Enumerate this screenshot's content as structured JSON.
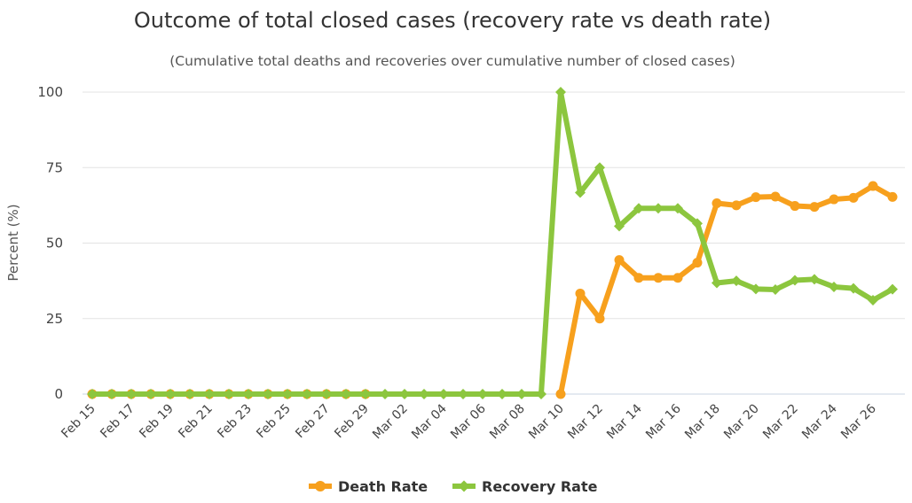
{
  "chart_data": {
    "type": "line",
    "title": "Outcome of total closed cases (recovery rate vs death rate)",
    "subtitle": "(Cumulative total deaths and recoveries over cumulative number of closed cases)",
    "xlabel": "",
    "ylabel": "Percent (%)",
    "ylim": [
      0,
      100
    ],
    "yticks": [
      "0",
      "25",
      "50",
      "75",
      "100"
    ],
    "ytick_values": [
      0,
      25,
      50,
      75,
      100
    ],
    "categories": [
      "Feb 15",
      "Feb 16",
      "Feb 17",
      "Feb 18",
      "Feb 19",
      "Feb 20",
      "Feb 21",
      "Feb 22",
      "Feb 23",
      "Feb 24",
      "Feb 25",
      "Feb 26",
      "Feb 27",
      "Feb 28",
      "Feb 29",
      "Mar 01",
      "Mar 02",
      "Mar 03",
      "Mar 04",
      "Mar 05",
      "Mar 06",
      "Mar 07",
      "Mar 08",
      "Mar 09",
      "Mar 10",
      "Mar 11",
      "Mar 12",
      "Mar 13",
      "Mar 14",
      "Mar 15",
      "Mar 16",
      "Mar 17",
      "Mar 18",
      "Mar 19",
      "Mar 20",
      "Mar 21",
      "Mar 22",
      "Mar 23",
      "Mar 24",
      "Mar 25",
      "Mar 26",
      "Mar 27"
    ],
    "x_tick_labels": [
      "Feb 15",
      "Feb 17",
      "Feb 19",
      "Feb 21",
      "Feb 23",
      "Feb 25",
      "Feb 27",
      "Feb 29",
      "Mar 02",
      "Mar 04",
      "Mar 06",
      "Mar 08",
      "Mar 10",
      "Mar 12",
      "Mar 14",
      "Mar 16",
      "Mar 18",
      "Mar 20",
      "Mar 22",
      "Mar 24",
      "Mar 26"
    ],
    "grid": true,
    "legend_position": "bottom-center",
    "series": [
      {
        "name": "Death Rate",
        "color": "#f7a01d",
        "marker": "circle",
        "start_index": 0,
        "values": [
          0,
          0,
          0,
          0,
          0,
          0,
          0,
          0,
          0,
          0,
          0,
          0,
          0,
          0,
          0,
          null,
          null,
          null,
          null,
          null,
          null,
          null,
          null,
          null,
          0,
          33.3,
          25,
          44.4,
          38.5,
          38.5,
          38.5,
          43.5,
          63.2,
          62.5,
          65.2,
          65.4,
          62.3,
          62,
          64.5,
          65,
          68.9,
          65.3
        ]
      },
      {
        "name": "Recovery Rate",
        "color": "#8cc63e",
        "marker": "diamond",
        "start_index": 0,
        "values": [
          0,
          0,
          0,
          0,
          0,
          0,
          0,
          0,
          0,
          0,
          0,
          0,
          0,
          0,
          0,
          0,
          0,
          0,
          0,
          0,
          0,
          0,
          0,
          0,
          100,
          66.7,
          75,
          55.6,
          61.5,
          61.5,
          61.5,
          56.5,
          36.8,
          37.5,
          34.8,
          34.6,
          37.7,
          38,
          35.5,
          35,
          31.1,
          34.7
        ]
      }
    ]
  }
}
